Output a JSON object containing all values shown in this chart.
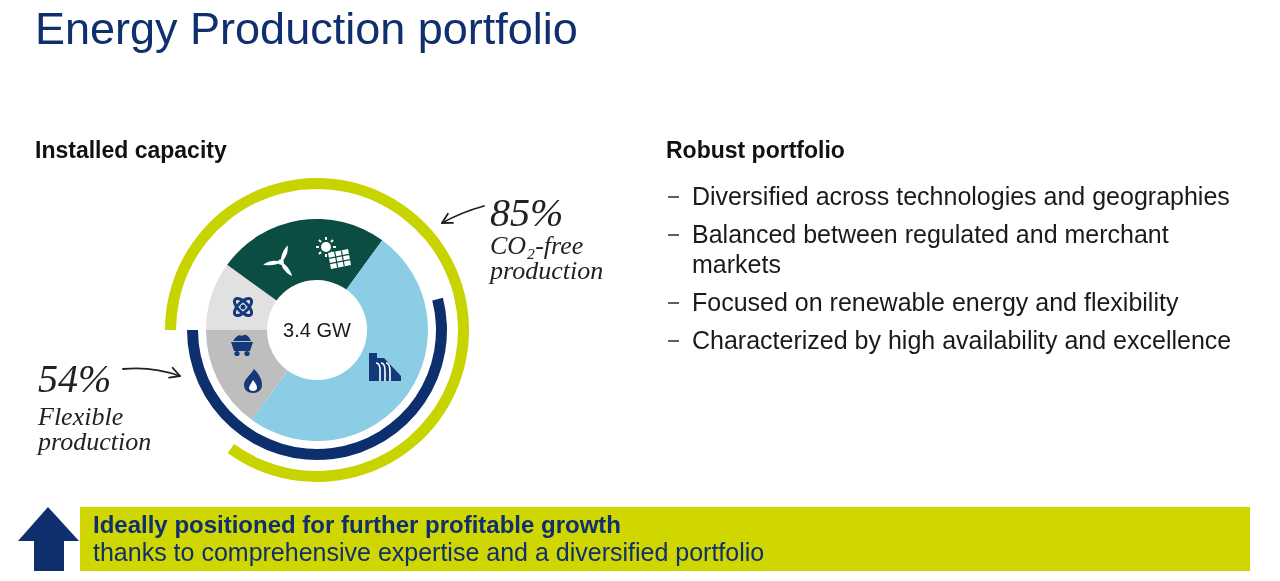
{
  "chart_data": [
    {
      "type": "donut",
      "title": "Energy Production portfolio",
      "subtitle": "Installed capacity",
      "categories": [
        null,
        null,
        null,
        null
      ],
      "values": [
        10,
        25,
        50,
        15
      ],
      "colors": [
        "#e1e1e1",
        "#0b4d43",
        "#8ccde6",
        "#bebebe"
      ],
      "annotations": [
        "3.4 GW",
        "85%",
        "CO₂-free production",
        "54%",
        "Flexible production"
      ]
    },
    {
      "type": "other",
      "title": "Robust portfolio",
      "annotations": [
        "Diversified across technologies and geographies",
        "Balanced between regulated and merchant markets",
        "Focused on renewable energy and flexibility",
        "Characterized by high availability and excellence"
      ]
    },
    {
      "type": "other",
      "title": "Ideally positioned for further profitable growth",
      "subtitle": "thanks to comprehensive expertise and a diversified portfolio"
    }
  ]
}
